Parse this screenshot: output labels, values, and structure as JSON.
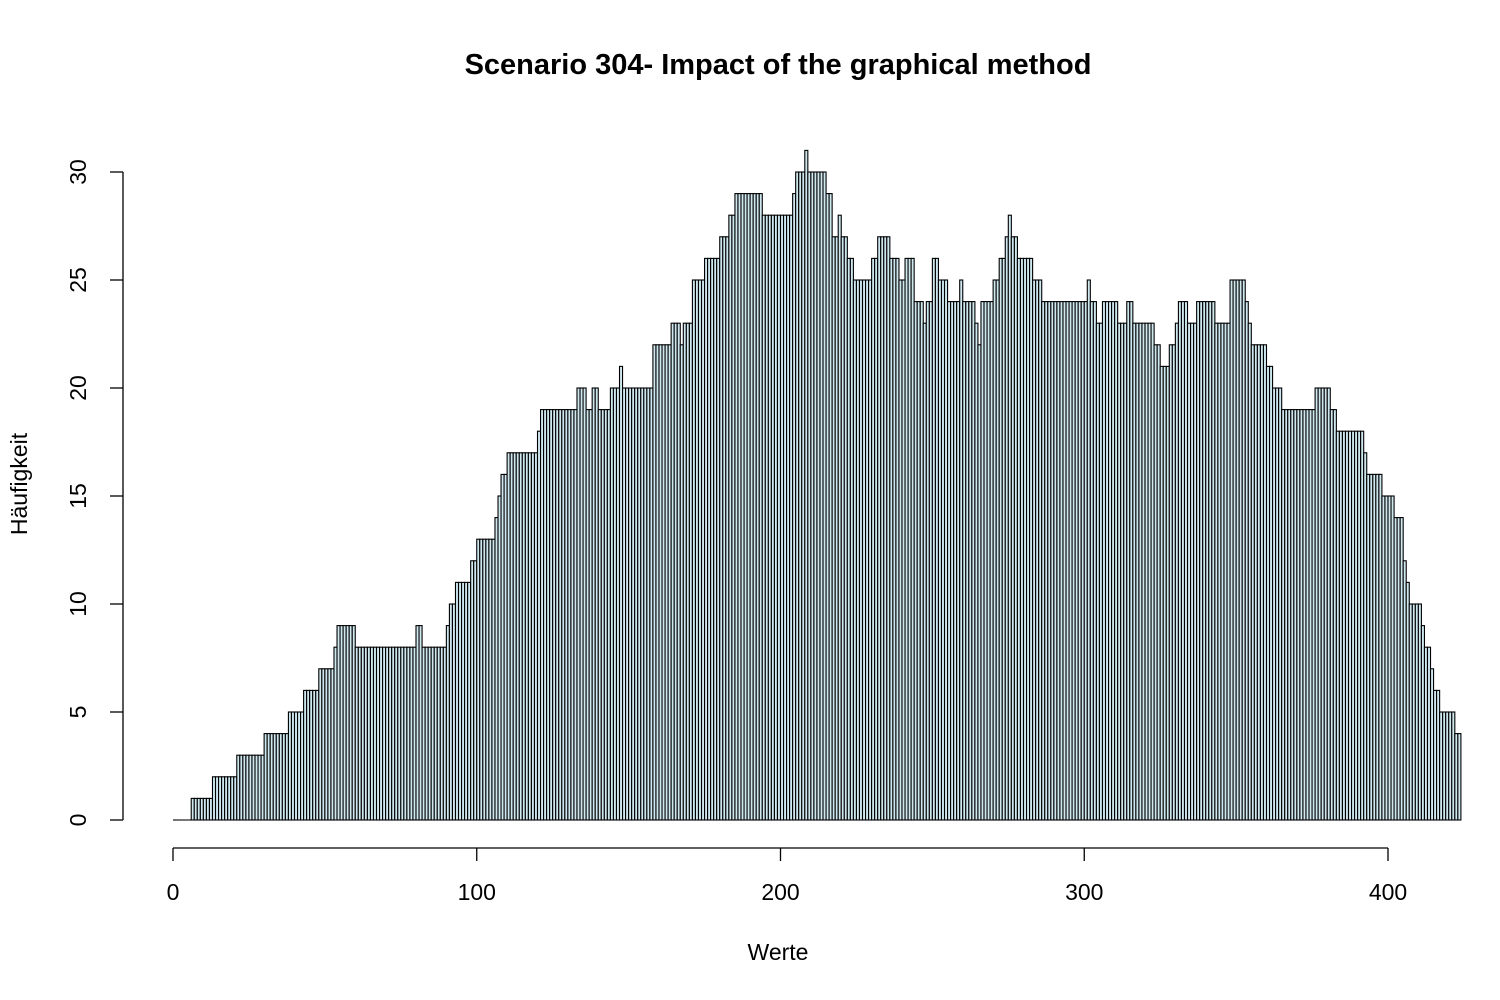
{
  "chart_data": {
    "type": "bar",
    "title": "Scenario 304- Impact of the graphical method",
    "xlabel": "Werte",
    "ylabel": "Häufigkeit",
    "xlim": [
      0,
      400
    ],
    "ylim": [
      0,
      30
    ],
    "x_ticks": [
      0,
      100,
      200,
      300,
      400
    ],
    "y_ticks": [
      0,
      5,
      10,
      15,
      20,
      25,
      30
    ],
    "bar_fill": "#cfe8ef",
    "bar_stroke": "#000000",
    "grid": false,
    "legend": "none",
    "bins": {
      "start": 0,
      "width": 1
    },
    "values": [
      0,
      0,
      0,
      0,
      0,
      0,
      1,
      1,
      1,
      1,
      1,
      1,
      1,
      2,
      2,
      2,
      2,
      2,
      2,
      2,
      2,
      3,
      3,
      3,
      3,
      3,
      3,
      3,
      3,
      3,
      4,
      4,
      4,
      4,
      4,
      4,
      4,
      4,
      5,
      5,
      5,
      5,
      5,
      6,
      6,
      6,
      6,
      6,
      7,
      7,
      7,
      7,
      7,
      8,
      9,
      9,
      9,
      9,
      9,
      9,
      8,
      8,
      8,
      8,
      8,
      8,
      8,
      8,
      8,
      8,
      8,
      8,
      8,
      8,
      8,
      8,
      8,
      8,
      8,
      8,
      9,
      9,
      8,
      8,
      8,
      8,
      8,
      8,
      8,
      8,
      9,
      10,
      10,
      11,
      11,
      11,
      11,
      11,
      12,
      12,
      13,
      13,
      13,
      13,
      13,
      13,
      14,
      15,
      16,
      16,
      17,
      17,
      17,
      17,
      17,
      17,
      17,
      17,
      17,
      17,
      18,
      19,
      19,
      19,
      19,
      19,
      19,
      19,
      19,
      19,
      19,
      19,
      19,
      20,
      20,
      20,
      19,
      19,
      20,
      20,
      19,
      19,
      19,
      19,
      20,
      20,
      20,
      21,
      20,
      20,
      20,
      20,
      20,
      20,
      20,
      20,
      20,
      20,
      22,
      22,
      22,
      22,
      22,
      22,
      23,
      23,
      23,
      22,
      23,
      23,
      23,
      25,
      25,
      25,
      25,
      26,
      26,
      26,
      26,
      26,
      27,
      27,
      27,
      28,
      28,
      29,
      29,
      29,
      29,
      29,
      29,
      29,
      29,
      29,
      28,
      28,
      28,
      28,
      28,
      28,
      28,
      28,
      28,
      28,
      29,
      30,
      30,
      30,
      31,
      30,
      30,
      30,
      30,
      30,
      30,
      29,
      29,
      27,
      27,
      28,
      27,
      27,
      26,
      26,
      25,
      25,
      25,
      25,
      25,
      25,
      26,
      26,
      27,
      27,
      27,
      27,
      26,
      26,
      26,
      25,
      25,
      26,
      26,
      26,
      24,
      24,
      24,
      23,
      24,
      24,
      26,
      26,
      25,
      25,
      25,
      24,
      24,
      24,
      24,
      25,
      24,
      24,
      24,
      24,
      23,
      22,
      24,
      24,
      24,
      24,
      25,
      25,
      26,
      26,
      27,
      28,
      27,
      27,
      26,
      26,
      26,
      26,
      26,
      25,
      25,
      25,
      24,
      24,
      24,
      24,
      24,
      24,
      24,
      24,
      24,
      24,
      24,
      24,
      24,
      24,
      24,
      25,
      24,
      24,
      23,
      23,
      24,
      24,
      24,
      24,
      24,
      23,
      23,
      23,
      24,
      24,
      23,
      23,
      23,
      23,
      23,
      23,
      23,
      22,
      22,
      21,
      21,
      21,
      22,
      22,
      23,
      24,
      24,
      24,
      23,
      23,
      23,
      24,
      24,
      24,
      24,
      24,
      24,
      23,
      23,
      23,
      23,
      23,
      25,
      25,
      25,
      25,
      25,
      24,
      23,
      22,
      22,
      22,
      22,
      22,
      21,
      21,
      20,
      20,
      20,
      19,
      19,
      19,
      19,
      19,
      19,
      19,
      19,
      19,
      19,
      19,
      20,
      20,
      20,
      20,
      20,
      19,
      19,
      18,
      18,
      18,
      18,
      18,
      18,
      18,
      18,
      18,
      17,
      16,
      16,
      16,
      16,
      16,
      15,
      15,
      15,
      15,
      14,
      14,
      14,
      12,
      11,
      10,
      10,
      10,
      10,
      9,
      8,
      8,
      7,
      6,
      6,
      5,
      5,
      5,
      5,
      5,
      4,
      4
    ]
  }
}
